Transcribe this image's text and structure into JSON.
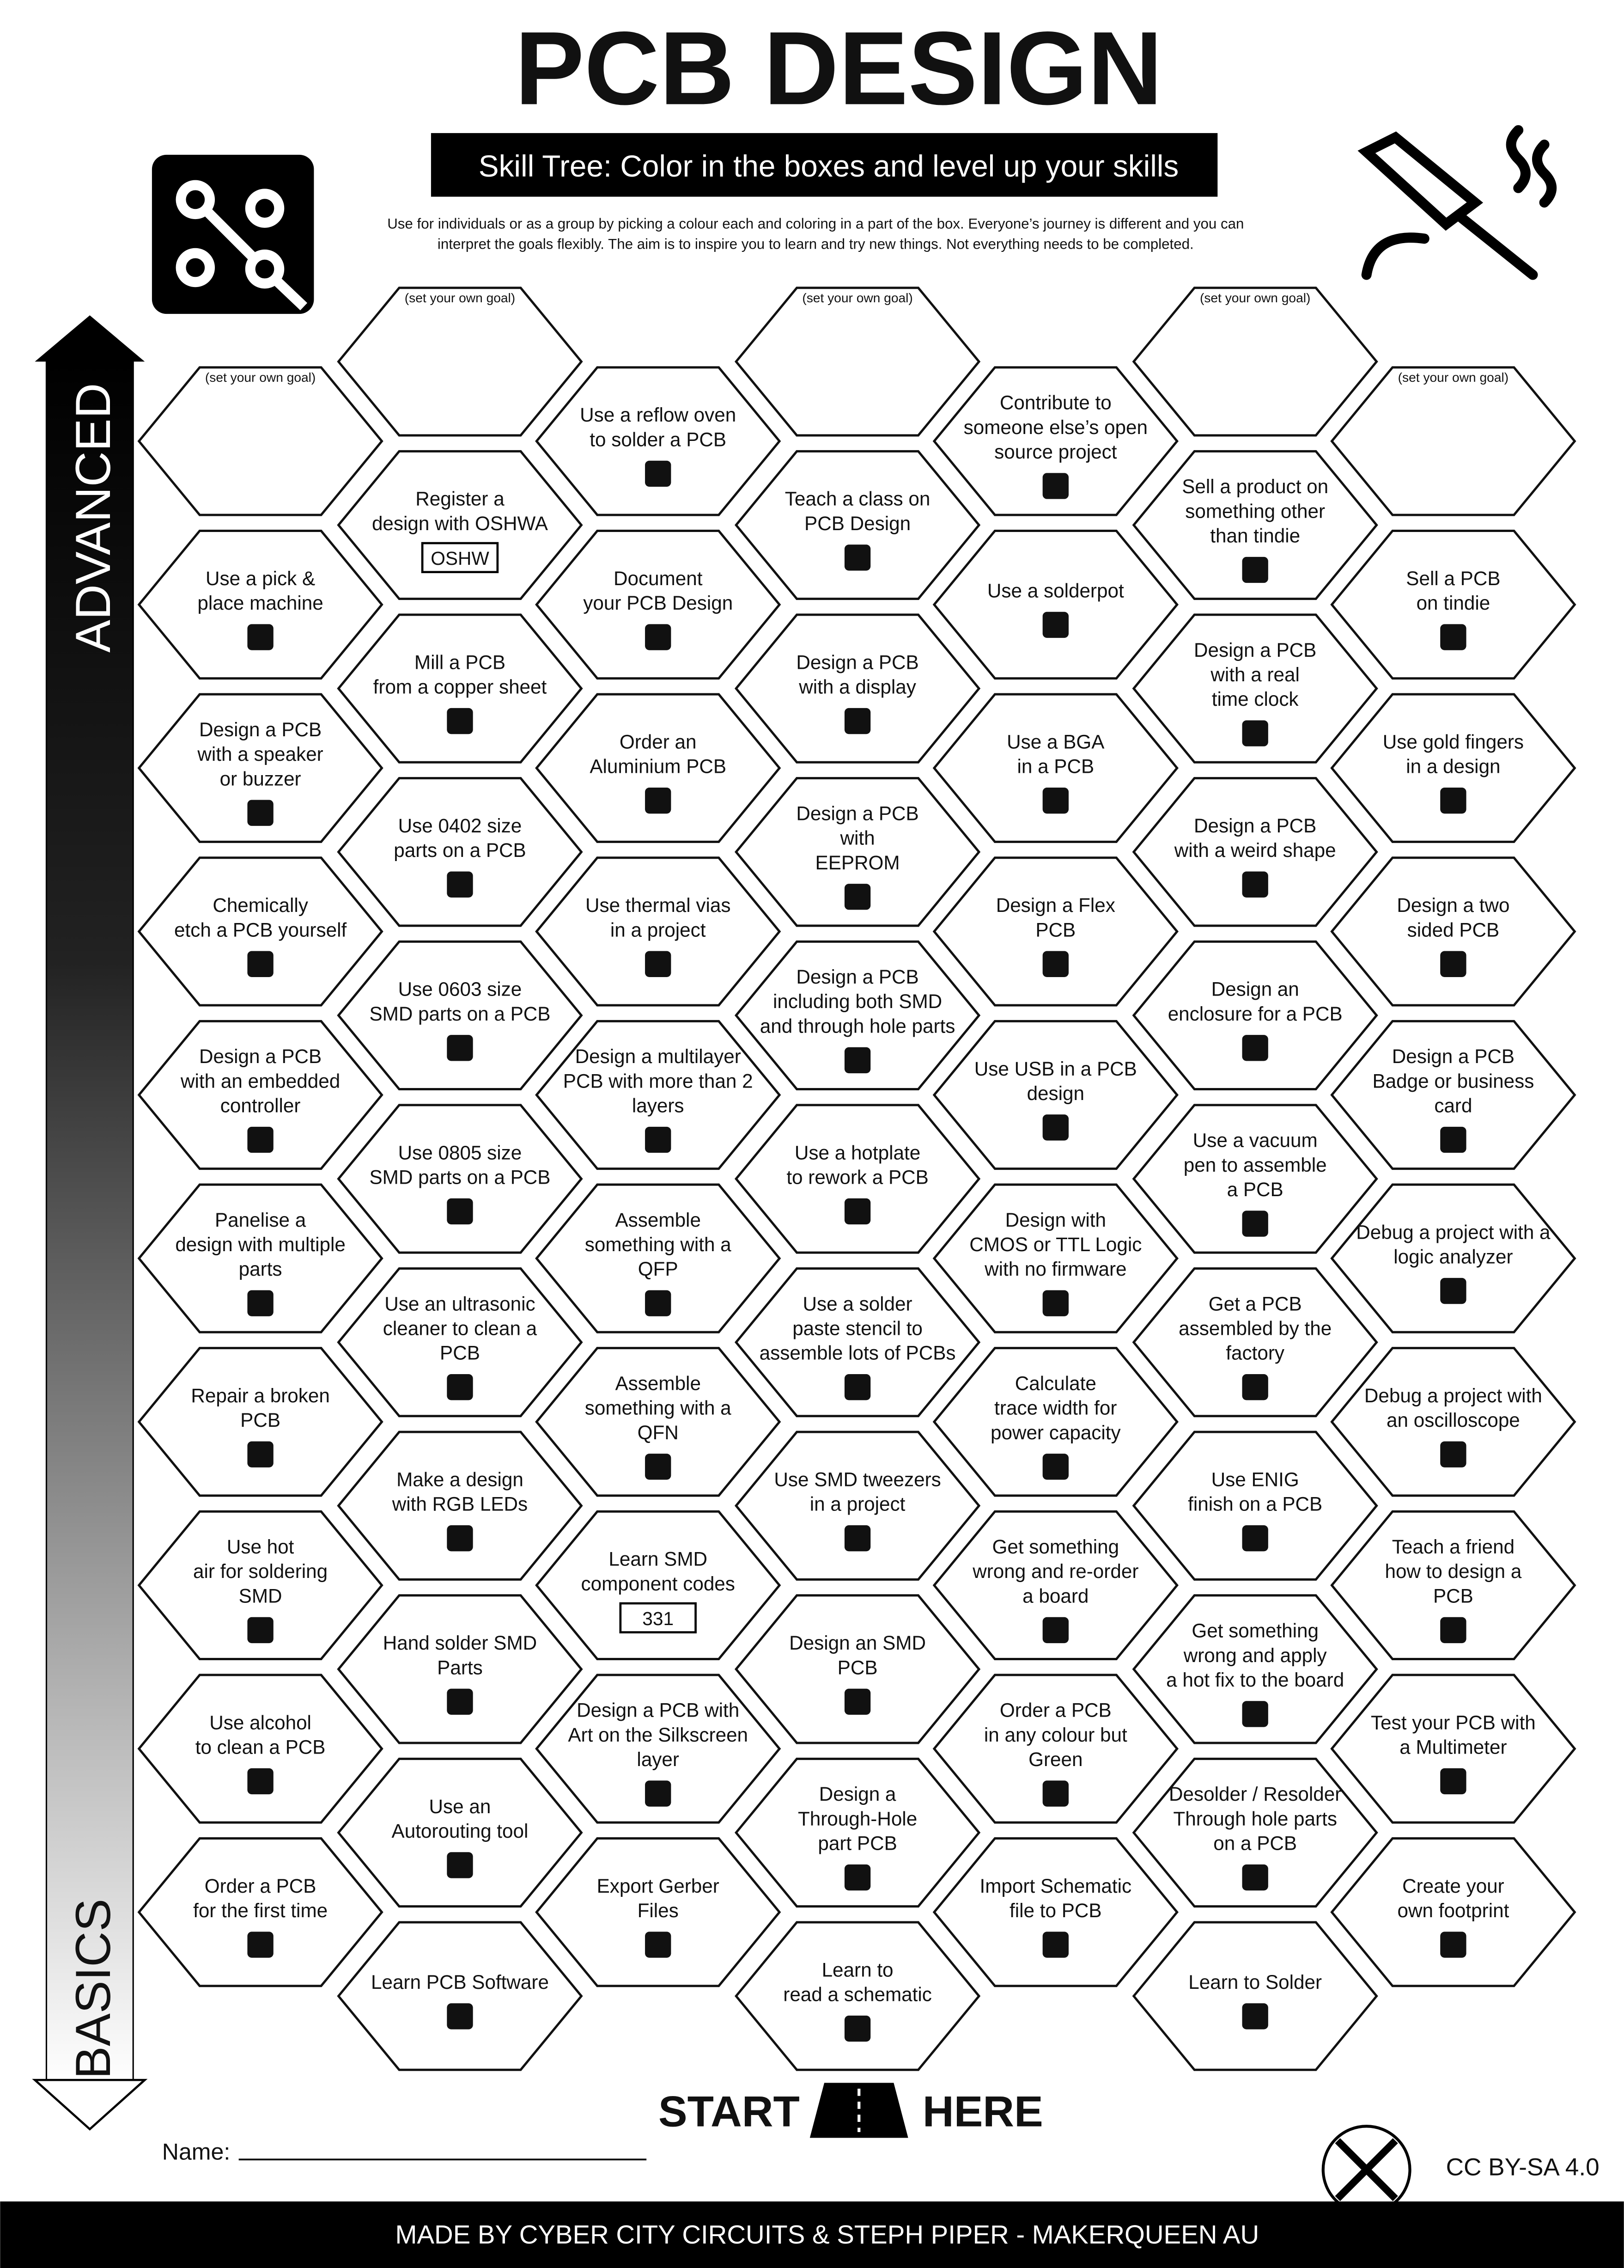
{
  "header": {
    "title": "PCB DESIGN",
    "subtitle": "Skill Tree:  Color in the boxes and level up your skills",
    "intro": [
      "Use for individuals or as a group by picking a colour each and coloring in a part of the box.  Everyone’s journey is different and you can",
      "interpret the goals flexibly.  The aim is to inspire you to learn and try new things. Not everything needs to be completed."
    ]
  },
  "axis": {
    "top": "ADVANCED",
    "bottom": "BASICS"
  },
  "columns": [
    [
      {
        "prompt": "(set your own goal)"
      },
      {
        "label": [
          "Use a pick &",
          "place machine"
        ]
      },
      {
        "label": [
          "Design a PCB",
          "with a speaker",
          "or buzzer"
        ]
      },
      {
        "label": [
          "Chemically",
          "etch a PCB yourself"
        ]
      },
      {
        "label": [
          "Design a PCB",
          "with an embedded",
          "controller"
        ]
      },
      {
        "label": [
          "Panelise a",
          "design with multiple",
          "parts"
        ]
      },
      {
        "label": [
          "Repair a broken",
          "PCB"
        ]
      },
      {
        "label": [
          "Use hot",
          "air for soldering",
          "SMD"
        ]
      },
      {
        "label": [
          "Use alcohol",
          "to clean a PCB"
        ]
      },
      {
        "label": [
          "Order a PCB",
          "for the first time"
        ]
      }
    ],
    [
      {
        "prompt": "(set your own goal)"
      },
      {
        "label": [
          "Register a",
          "design with OSHWA"
        ],
        "icon_text": "OSHW"
      },
      {
        "label": [
          "Mill a PCB",
          "from a copper sheet"
        ]
      },
      {
        "label": [
          "Use 0402 size",
          "parts on a PCB"
        ]
      },
      {
        "label": [
          "Use 0603 size",
          "SMD parts on a PCB"
        ]
      },
      {
        "label": [
          "Use 0805 size",
          "SMD parts on a PCB"
        ]
      },
      {
        "label": [
          "Use an ultrasonic",
          "cleaner to clean a",
          "PCB"
        ]
      },
      {
        "label": [
          "Make a design",
          "with RGB LEDs"
        ]
      },
      {
        "label": [
          "Hand solder SMD",
          "Parts"
        ]
      },
      {
        "label": [
          "Use an",
          "Autorouting tool"
        ]
      },
      {
        "label": [
          "Learn PCB Software"
        ]
      }
    ],
    [
      {
        "label": [
          "Use a reflow oven",
          "to solder a PCB"
        ]
      },
      {
        "label": [
          "Document",
          "your PCB Design"
        ]
      },
      {
        "label": [
          "Order an",
          "Aluminium PCB"
        ]
      },
      {
        "label": [
          "Use thermal vias",
          "in a project"
        ]
      },
      {
        "label": [
          "Design a multilayer",
          "PCB with more than 2",
          "layers"
        ]
      },
      {
        "label": [
          "Assemble",
          "something  with a",
          "QFP"
        ]
      },
      {
        "label": [
          "Assemble",
          "something  with a",
          "QFN"
        ]
      },
      {
        "label": [
          "Learn SMD",
          "component codes"
        ],
        "icon_text": "331"
      },
      {
        "label": [
          "Design a PCB with",
          "Art on the Silkscreen",
          "layer"
        ]
      },
      {
        "label": [
          "Export Gerber",
          "Files"
        ]
      }
    ],
    [
      {
        "prompt": "(set your own goal)"
      },
      {
        "label": [
          "Teach a class on",
          "PCB Design"
        ]
      },
      {
        "label": [
          "Design a PCB",
          "with a display"
        ]
      },
      {
        "label": [
          "Design a PCB",
          "with",
          "EEPROM"
        ]
      },
      {
        "label": [
          "Design a PCB",
          "including both SMD",
          "and through hole parts"
        ]
      },
      {
        "label": [
          "Use a hotplate",
          "to rework a PCB"
        ]
      },
      {
        "label": [
          "Use a solder",
          "paste stencil to",
          "assemble lots of PCBs"
        ]
      },
      {
        "label": [
          "Use SMD tweezers",
          "in a project"
        ]
      },
      {
        "label": [
          "Design an SMD",
          "PCB"
        ]
      },
      {
        "label": [
          "Design a",
          "Through-Hole",
          "part PCB"
        ]
      },
      {
        "label": [
          "Learn to",
          "read a schematic"
        ]
      }
    ],
    [
      {
        "label": [
          "Contribute to",
          "someone else’s open",
          "source project"
        ]
      },
      {
        "label": [
          "Use a solderpot"
        ]
      },
      {
        "label": [
          "Use a BGA",
          "in a PCB"
        ]
      },
      {
        "label": [
          "Design a Flex",
          "PCB"
        ]
      },
      {
        "label": [
          "Use USB in a PCB",
          "design"
        ]
      },
      {
        "label": [
          "Design with",
          "CMOS or TTL Logic",
          "with no firmware"
        ]
      },
      {
        "label": [
          "Calculate",
          "trace width for",
          "power capacity"
        ]
      },
      {
        "label": [
          "Get something",
          "wrong and re-order",
          "a board"
        ]
      },
      {
        "label": [
          "Order a PCB",
          "in any colour but",
          "Green"
        ]
      },
      {
        "label": [
          "Import Schematic",
          "file to PCB"
        ]
      }
    ],
    [
      {
        "prompt": "(set your own goal)"
      },
      {
        "label": [
          "Sell a product on",
          "something other",
          "than tindie"
        ]
      },
      {
        "label": [
          "Design a PCB",
          "with a real",
          "time clock"
        ]
      },
      {
        "label": [
          "Design a PCB",
          "with a weird shape"
        ]
      },
      {
        "label": [
          "Design an",
          "enclosure for a PCB"
        ]
      },
      {
        "label": [
          "Use a vacuum",
          "pen to assemble",
          "a PCB"
        ]
      },
      {
        "label": [
          "Get a PCB",
          "assembled by the",
          "factory"
        ]
      },
      {
        "label": [
          "Use ENIG",
          "finish on a PCB"
        ]
      },
      {
        "label": [
          "Get something",
          "wrong and apply",
          "a hot fix to the board"
        ]
      },
      {
        "label": [
          "Desolder / Resolder",
          "Through hole parts",
          "on a PCB"
        ]
      },
      {
        "label": [
          "Learn to Solder"
        ]
      }
    ],
    [
      {
        "prompt": "(set your own goal)"
      },
      {
        "label": [
          "Sell a PCB",
          "on tindie"
        ]
      },
      {
        "label": [
          "Use gold fingers",
          "in a design"
        ]
      },
      {
        "label": [
          "Design a two",
          "sided PCB"
        ]
      },
      {
        "label": [
          "Design a PCB",
          "Badge or business",
          "card"
        ]
      },
      {
        "label": [
          "Debug a project with a",
          "logic analyzer"
        ]
      },
      {
        "label": [
          "Debug a project with",
          "an oscilloscope"
        ]
      },
      {
        "label": [
          "Teach a friend",
          "how to design a",
          "PCB"
        ]
      },
      {
        "label": [
          "Test your PCB with",
          "a Multimeter"
        ]
      },
      {
        "label": [
          "Create your",
          "own footprint"
        ]
      }
    ]
  ],
  "start": {
    "left": "START",
    "right": "HERE"
  },
  "name_label": "Name:",
  "license": "CC BY-SA 4.0",
  "footer": "MADE BY CYBER CITY CIRCUITS & STEPH PIPER  -  MAKERQUEEN AU"
}
